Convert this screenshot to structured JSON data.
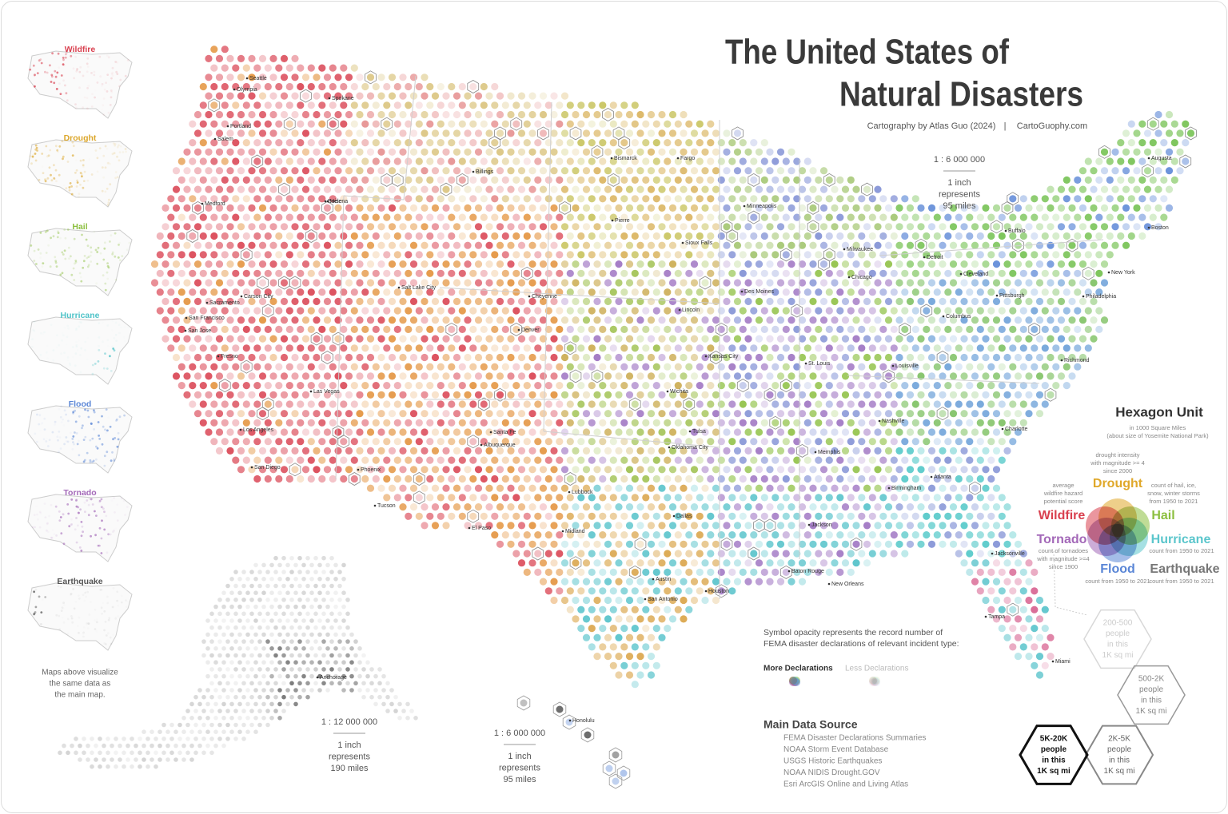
{
  "header": {
    "title_line1": "The United States of",
    "title_line2": "Natural Disasters",
    "credit": "Cartography by Atlas Guo (2024)",
    "separator": "|",
    "website": "CartoGuophy.com"
  },
  "small_maps": [
    {
      "label": "Wildfire",
      "color": "#d9404f"
    },
    {
      "label": "Drought",
      "color": "#dca72c"
    },
    {
      "label": "Hail",
      "color": "#8cbf3f"
    },
    {
      "label": "Hurricane",
      "color": "#4fc3c8"
    },
    {
      "label": "Flood",
      "color": "#5a86d6"
    },
    {
      "label": "Tornado",
      "color": "#a368b8"
    },
    {
      "label": "Earthquake",
      "color": "#555555"
    }
  ],
  "small_maps_note": [
    "Maps above visualize",
    "the same data as",
    "the main map."
  ],
  "scales": {
    "main": {
      "ratio": "1 : 6 000 000",
      "lines": [
        "1 inch",
        "represents",
        "95 miles"
      ]
    },
    "alaska": {
      "ratio": "1 : 12 000 000",
      "lines": [
        "1 inch",
        "represents",
        "190 miles"
      ]
    },
    "hawaii": {
      "ratio": "1 : 6 000 000",
      "lines": [
        "1 inch",
        "represents",
        "95 miles"
      ]
    }
  },
  "legend": {
    "title": "Hexagon Unit",
    "subtitle": [
      "in 1000 Square Miles",
      "(about size of Yosemite National Park)"
    ],
    "categories": [
      {
        "name": "Drought",
        "color": "#e0a82a",
        "note": [
          "drought intensity",
          "with magnitude >= 4",
          "since 2000"
        ]
      },
      {
        "name": "Wildfire",
        "color": "#d9404f",
        "note": [
          "average",
          "wildfire hazard",
          "potential score"
        ]
      },
      {
        "name": "Hail",
        "color": "#8cbf3f",
        "note": [
          "count of hail, ice,",
          "snow, winter storms",
          "from 1950 to 2021"
        ]
      },
      {
        "name": "Tornado",
        "color": "#a368b8",
        "note": [
          "count of tornadoes",
          "with magnitude >=4",
          "since 1900"
        ]
      },
      {
        "name": "Hurricane",
        "color": "#5bc6cc",
        "note": [
          "count from 1950 to 2021"
        ]
      },
      {
        "name": "Flood",
        "color": "#5a86d6",
        "note": [
          "count from 1950 to 2021"
        ]
      },
      {
        "name": "Earthquake",
        "color": "#777777",
        "note": [
          "count from 1950 to 2021"
        ]
      }
    ],
    "population": [
      {
        "lines": [
          "200-500",
          "people",
          "in this",
          "1K sq mi"
        ]
      },
      {
        "lines": [
          "500-2K",
          "people",
          "in this",
          "1K sq mi"
        ]
      },
      {
        "lines": [
          "2K-5K",
          "people",
          "in this",
          "1K sq mi"
        ]
      },
      {
        "lines": [
          "5K-20K",
          "people",
          "in this",
          "1K sq mi"
        ]
      }
    ]
  },
  "opacity_note": {
    "lines": [
      "Symbol opacity represents the record number of",
      "FEMA disaster declarations of relevant incident type:"
    ],
    "more": "More Declarations",
    "less": "Less Declarations"
  },
  "sources": {
    "title": "Main Data Source",
    "items": [
      "FEMA Disaster Declarations Summaries",
      "NOAA Storm Event Database",
      "USGS Historic Earthquakes",
      "NOAA NIDIS Drought.GOV",
      "Esri ArcGIS Online and Living Atlas"
    ]
  },
  "cities": [
    "Seattle",
    "Olympia",
    "Spokane",
    "Portland",
    "Salem",
    "Helena",
    "Billings",
    "Boise",
    "Medford",
    "Sacramento",
    "Carson City",
    "San Francisco",
    "San Jose",
    "Fresno",
    "Las Vegas",
    "Los Angeles",
    "San Diego",
    "Phoenix",
    "Tucson",
    "Salt Lake City",
    "Denver",
    "Cheyenne",
    "Albuquerque",
    "Santa Fe",
    "El Paso",
    "Lubbock",
    "Midland",
    "Oklahoma City",
    "Tulsa",
    "Dallas",
    "Austin",
    "San Antonio",
    "Houston",
    "Wichita",
    "Kansas City",
    "Lincoln",
    "Des Moines",
    "Sioux Falls",
    "Minneapolis",
    "Bismarck",
    "Fargo",
    "Pierre",
    "Chicago",
    "Milwaukee",
    "St. Louis",
    "Memphis",
    "Nashville",
    "Atlanta",
    "Birmingham",
    "Jackson",
    "New Orleans",
    "Baton Rouge",
    "Jacksonville",
    "Tampa",
    "Miami",
    "Charlotte",
    "Richmond",
    "Philadelphia",
    "New York",
    "Boston",
    "Pittsburgh",
    "Cleveland",
    "Detroit",
    "Columbus",
    "Louisville",
    "Buffalo",
    "Augusta",
    "Honolulu",
    "Anchorage"
  ]
}
